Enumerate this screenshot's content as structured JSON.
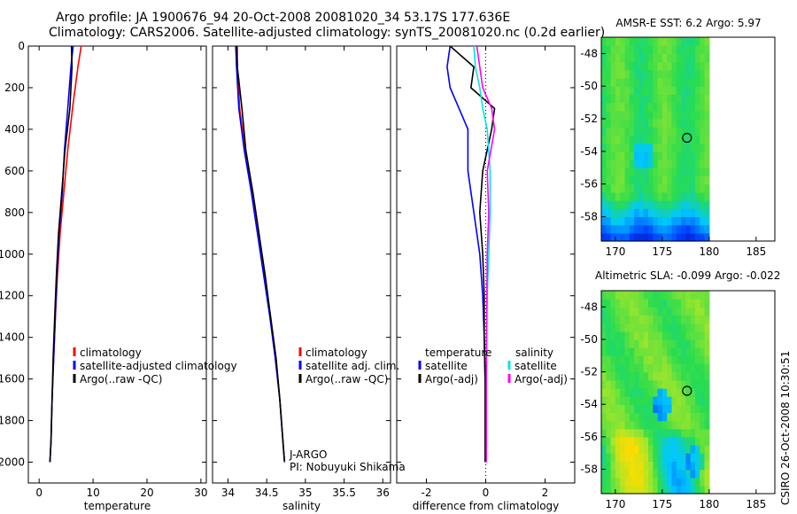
{
  "header": {
    "title_line1": "Argo profile: JA 1900676_94 20-Oct-2008 20081020_34 53.17S 177.636E",
    "title_line2": "Climatology: CARS2006. Satellite-adjusted climatology: synTS_20081020.nc (0.2d earlier)"
  },
  "credit": "CSIRO 26-Oct-2008 10:30:51",
  "colors": {
    "red": "#ff0000",
    "blue": "#0000ff",
    "black": "#000000",
    "cyan": "#00e5e5",
    "magenta": "#ff00ff"
  },
  "chart_data": [
    {
      "id": "temperature",
      "type": "line",
      "xlabel": "temperature",
      "ylabel": "",
      "xlim": [
        -2,
        31
      ],
      "ylim": [
        2100,
        0
      ],
      "xticks": [
        0,
        10,
        20,
        30
      ],
      "yticks": [
        0,
        200,
        400,
        600,
        800,
        1000,
        1200,
        1400,
        1600,
        1800,
        2000
      ],
      "legend": [
        "climatology",
        "satellite-adjusted climatology",
        "Argo(..raw -QC)"
      ],
      "series": [
        {
          "name": "climatology",
          "color": "red",
          "x": [
            7.8,
            7.2,
            6.2,
            5.3,
            4.6,
            3.9,
            3.4,
            3.0,
            2.7,
            2.4,
            2.2,
            2.0
          ],
          "y": [
            0,
            100,
            300,
            500,
            700,
            900,
            1100,
            1300,
            1500,
            1700,
            1900,
            2000
          ]
        },
        {
          "name": "satellite-adjusted climatology",
          "color": "blue",
          "x": [
            6.3,
            5.9,
            5.3,
            4.7,
            4.3,
            3.7,
            3.3,
            3.0,
            2.7,
            2.4,
            2.2,
            2.0
          ],
          "y": [
            0,
            100,
            300,
            500,
            700,
            900,
            1100,
            1300,
            1500,
            1700,
            1900,
            2000
          ]
        },
        {
          "name": "Argo(..raw -QC)",
          "color": "black",
          "x": [
            6.0,
            6.1,
            5.7,
            4.8,
            4.2,
            3.6,
            3.2,
            2.9,
            2.6,
            2.4,
            2.2,
            2.0
          ],
          "y": [
            0,
            100,
            300,
            500,
            700,
            900,
            1100,
            1300,
            1500,
            1700,
            1900,
            2000
          ]
        }
      ]
    },
    {
      "id": "salinity",
      "type": "line",
      "xlabel": "salinity",
      "xlim": [
        33.8,
        36.1
      ],
      "ylim": [
        2100,
        0
      ],
      "xticks": [
        34,
        34.5,
        35,
        35.5,
        36
      ],
      "tick_labels": [
        "34",
        "34.5",
        "35",
        "35.5",
        "36"
      ],
      "legend": [
        "climatology",
        "satellite adj. clim.",
        "Argo(..raw -QC)"
      ],
      "annotation": [
        "J-ARGO",
        "PI: Nobuyuki Shikama"
      ],
      "series": [
        {
          "name": "climatology",
          "color": "red",
          "x": [
            34.12,
            34.12,
            34.15,
            34.22,
            34.32,
            34.4,
            34.47,
            34.55,
            34.62,
            34.67,
            34.71,
            34.73
          ],
          "y": [
            0,
            100,
            300,
            500,
            700,
            900,
            1100,
            1300,
            1500,
            1700,
            1900,
            2000
          ]
        },
        {
          "name": "satellite adj. clim.",
          "color": "blue",
          "x": [
            34.1,
            34.11,
            34.14,
            34.21,
            34.3,
            34.38,
            34.46,
            34.54,
            34.61,
            34.67,
            34.71,
            34.73
          ],
          "y": [
            0,
            100,
            300,
            500,
            700,
            900,
            1100,
            1300,
            1500,
            1700,
            1900,
            2000
          ]
        },
        {
          "name": "Argo(..raw -QC)",
          "color": "black",
          "x": [
            34.11,
            34.12,
            34.18,
            34.23,
            34.32,
            34.4,
            34.48,
            34.55,
            34.62,
            34.67,
            34.71,
            34.73
          ],
          "y": [
            0,
            100,
            300,
            500,
            700,
            900,
            1100,
            1300,
            1500,
            1700,
            1900,
            2000
          ]
        }
      ]
    },
    {
      "id": "difference",
      "type": "line",
      "xlabel": "difference from climatology",
      "xlim": [
        -3,
        3
      ],
      "ylim": [
        2100,
        0
      ],
      "xticks": [
        -2,
        0,
        2
      ],
      "legend_temperature_title": "temperature",
      "legend_salinity_title": "salinity",
      "legend": [
        "satellite",
        "Argo(-adj)",
        "satellite",
        "Argo(-adj)"
      ],
      "series": [
        {
          "name": "satellite",
          "group": "temperature",
          "color": "blue",
          "x": [
            -1.2,
            -1.3,
            -1.2,
            -0.9,
            -0.6,
            -0.6,
            -0.4,
            -0.2,
            -0.1,
            -0.05,
            -0.02,
            0
          ],
          "y": [
            0,
            100,
            200,
            300,
            400,
            600,
            800,
            1000,
            1200,
            1400,
            1600,
            2000
          ]
        },
        {
          "name": "Argo(-adj)",
          "group": "temperature",
          "color": "black",
          "x": [
            -1.2,
            -0.4,
            -0.5,
            0.3,
            0.2,
            -0.1,
            -0.2,
            -0.1,
            -0.05,
            -0.05,
            -0.02,
            -0.02
          ],
          "y": [
            0,
            100,
            200,
            300,
            400,
            600,
            800,
            1000,
            1200,
            1400,
            1600,
            2000
          ]
        },
        {
          "name": "satellite",
          "group": "salinity",
          "color": "cyan",
          "x": [
            -0.4,
            -0.35,
            -0.2,
            -0.1,
            0.05,
            0.15,
            0.15,
            0.1,
            0.05,
            0.03,
            0.02,
            0.02
          ],
          "y": [
            0,
            100,
            200,
            300,
            400,
            600,
            800,
            1000,
            1200,
            1400,
            1600,
            2000
          ]
        },
        {
          "name": "Argo(-adj)",
          "group": "salinity",
          "color": "magenta",
          "x": [
            -0.3,
            -0.2,
            -0.1,
            0.2,
            0.3,
            0.05,
            0.1,
            0.05,
            0.04,
            0.03,
            0.02,
            0.02
          ],
          "y": [
            0,
            100,
            200,
            300,
            400,
            600,
            800,
            1000,
            1200,
            1400,
            1600,
            2000
          ]
        }
      ]
    },
    {
      "id": "sst-map",
      "type": "heatmap",
      "title": "AMSR-E SST: 6.2 Argo: 5.97",
      "xlim": [
        168.5,
        187
      ],
      "ylim": [
        -59.5,
        -47
      ],
      "xticks": [
        170,
        175,
        180,
        185
      ],
      "yticks": [
        -48,
        -50,
        -52,
        -54,
        -56,
        -58
      ],
      "data_x_range": [
        168.5,
        180
      ],
      "marker": {
        "x": 177.636,
        "y": -53.17
      }
    },
    {
      "id": "sla-map",
      "type": "heatmap",
      "title": "Altimetric SLA: -0.099 Argo: -0.022",
      "xlim": [
        168.5,
        187
      ],
      "ylim": [
        -59.5,
        -47
      ],
      "xticks": [
        170,
        175,
        180,
        185
      ],
      "yticks": [
        -48,
        -50,
        -52,
        -54,
        -56,
        -58
      ],
      "data_x_range": [
        168.5,
        180
      ],
      "marker": {
        "x": 177.636,
        "y": -53.17
      }
    }
  ]
}
